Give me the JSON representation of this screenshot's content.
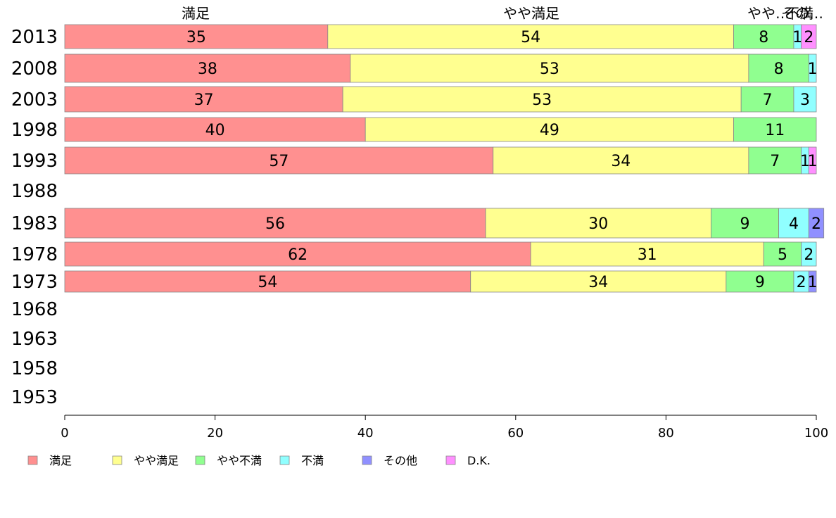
{
  "chart_data": {
    "type": "bar",
    "orientation": "horizontal",
    "stacked": true,
    "categories": [
      "2013",
      "2008",
      "2003",
      "1998",
      "1993",
      "1988",
      "1983",
      "1978",
      "1973",
      "1968",
      "1963",
      "1958",
      "1953"
    ],
    "series": [
      {
        "name": "満足",
        "color": "#ff9090",
        "values": [
          35,
          38,
          37,
          40,
          57,
          null,
          56,
          62,
          54,
          null,
          null,
          null,
          null
        ]
      },
      {
        "name": "やや満足",
        "color": "#ffff90",
        "values": [
          54,
          53,
          53,
          49,
          34,
          null,
          30,
          31,
          34,
          null,
          null,
          null,
          null
        ]
      },
      {
        "name": "やや不満",
        "color": "#90ff90",
        "values": [
          8,
          8,
          7,
          11,
          7,
          null,
          9,
          5,
          9,
          null,
          null,
          null,
          null
        ]
      },
      {
        "name": "不満",
        "color": "#90ffff",
        "values": [
          1,
          1,
          3,
          0,
          1,
          null,
          4,
          2,
          2,
          null,
          null,
          null,
          null
        ]
      },
      {
        "name": "その他",
        "color": "#9090ff",
        "values": [
          0,
          0,
          0,
          0,
          0,
          null,
          2,
          0,
          1,
          null,
          null,
          null,
          null
        ]
      },
      {
        "name": "D.K.",
        "color": "#ff90ff",
        "values": [
          2,
          0,
          0,
          0,
          1,
          null,
          0,
          0,
          0,
          null,
          null,
          null,
          null
        ]
      }
    ],
    "column_headers": [
      "満足",
      "やや満足",
      "やや…",
      "不満",
      "その…"
    ],
    "x_ticks": [
      "0",
      "20",
      "40",
      "60",
      "80",
      "100"
    ],
    "xlim": [
      0,
      100
    ],
    "grid": false,
    "legend_position": "bottom"
  }
}
